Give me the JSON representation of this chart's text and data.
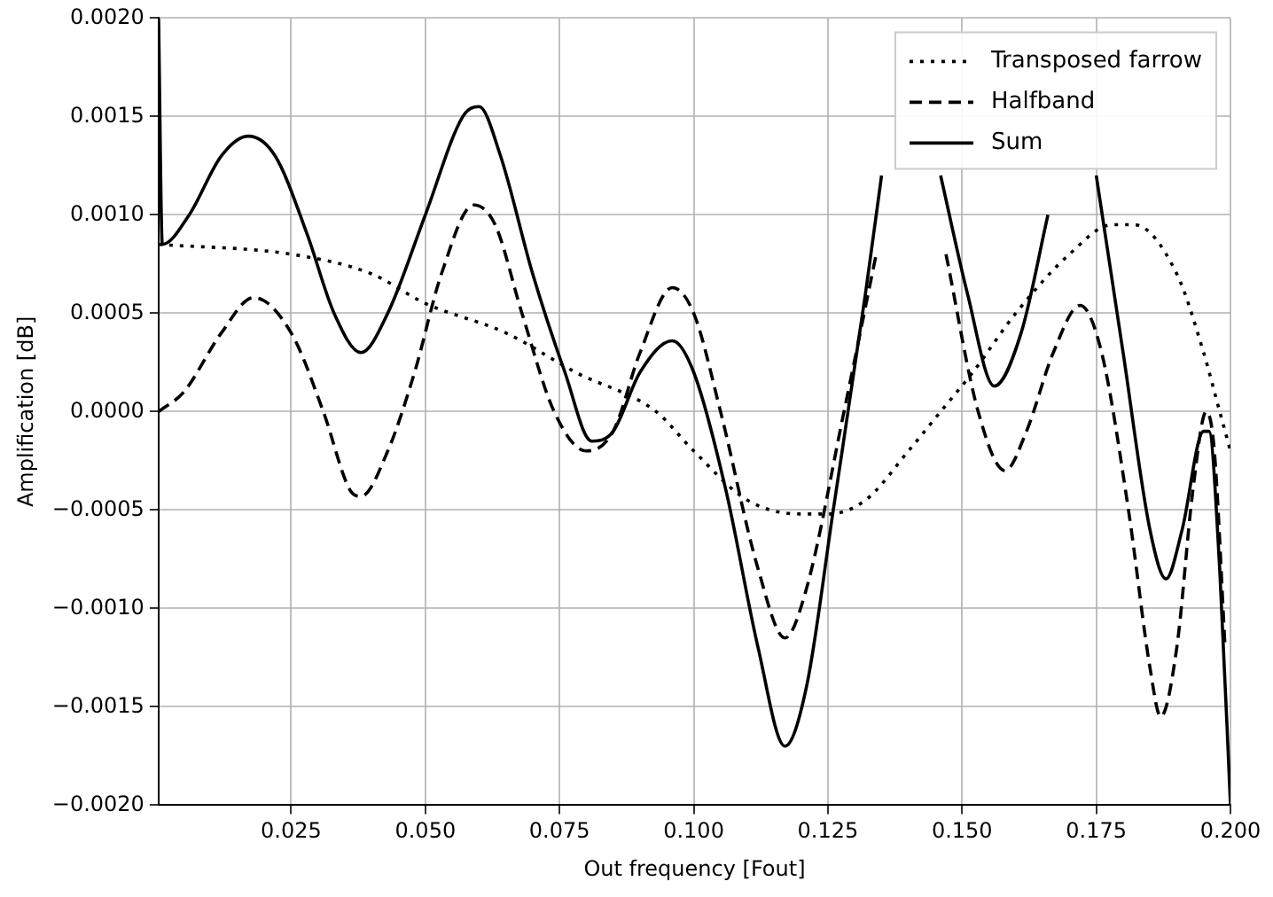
{
  "chart_data": {
    "type": "line",
    "xlabel": "Out frequency [Fout]",
    "ylabel": "Amplification [dB]",
    "xlim": [
      0.0003,
      0.2
    ],
    "ylim": [
      -0.002,
      0.002
    ],
    "xticks": [
      {
        "value": 0.025,
        "label": "0.025"
      },
      {
        "value": 0.05,
        "label": "0.050"
      },
      {
        "value": 0.075,
        "label": "0.075"
      },
      {
        "value": 0.1,
        "label": "0.100"
      },
      {
        "value": 0.125,
        "label": "0.125"
      },
      {
        "value": 0.15,
        "label": "0.150"
      },
      {
        "value": 0.175,
        "label": "0.175"
      },
      {
        "value": 0.2,
        "label": "0.200"
      }
    ],
    "yticks": [
      {
        "value": -0.002,
        "label": "−0.0020"
      },
      {
        "value": -0.0015,
        "label": "−0.0015"
      },
      {
        "value": -0.001,
        "label": "−0.0010"
      },
      {
        "value": -0.0005,
        "label": "−0.0005"
      },
      {
        "value": 0,
        "label": "0.0000"
      },
      {
        "value": 0.0005,
        "label": "0.0005"
      },
      {
        "value": 0.001,
        "label": "0.0010"
      },
      {
        "value": 0.0015,
        "label": "0.0015"
      },
      {
        "value": 0.002,
        "label": "0.0020"
      }
    ],
    "grid": true,
    "legend": "top right",
    "marker": "none",
    "series": [
      {
        "name": "Transposed farrow",
        "color": "#000000",
        "line_style": "dotted",
        "x": [
          0.0003,
          0.025,
          0.04,
          0.05,
          0.065,
          0.078,
          0.093,
          0.1,
          0.11,
          0.12,
          0.125,
          0.132,
          0.14,
          0.146,
          0.152,
          0.16,
          0.17,
          0.178,
          0.182,
          0.19,
          0.195,
          0.198,
          0.2
        ],
        "values": [
          0.00085,
          0.0008,
          0.0007,
          0.00055,
          0.0004,
          0.0002,
          0.0,
          -0.0002,
          -0.00045,
          -0.00052,
          -0.00052,
          -0.00045,
          -0.0002,
          0.0,
          0.0002,
          0.0005,
          0.0008,
          0.00095,
          0.00095,
          0.0007,
          0.0003,
          0.0,
          -0.0002
        ]
      },
      {
        "name": "Halfband",
        "color": "#000000",
        "line_style": "dashed",
        "x": [
          0.0003,
          0.005,
          0.012,
          0.018,
          0.025,
          0.031,
          0.036,
          0.038,
          0.043,
          0.048,
          0.053,
          0.059,
          0.063,
          0.068,
          0.074,
          0.08,
          0.085,
          0.09,
          0.096,
          0.1,
          0.105,
          0.112,
          0.117,
          0.121,
          0.128,
          0.134,
          0.14,
          0.147,
          0.153,
          0.158,
          0.162,
          0.167,
          0.172,
          0.176,
          0.181,
          0.185,
          0.187,
          0.19,
          0.193,
          0.1955,
          0.197,
          0.199
        ],
        "values": [
          0.0,
          0.0001,
          0.0004,
          0.00058,
          0.0004,
          0.0,
          -0.0004,
          -0.00043,
          -0.0002,
          0.0002,
          0.0007,
          0.00105,
          0.00095,
          0.0005,
          0.0,
          -0.0002,
          -0.0001,
          0.0003,
          0.00063,
          0.0005,
          0.0,
          -0.0008,
          -0.00115,
          -0.0009,
          0.0,
          0.0008,
          null,
          0.0008,
          0.0,
          -0.0003,
          -0.0001,
          0.0003,
          0.00054,
          0.0003,
          -0.0005,
          -0.0013,
          -0.00155,
          -0.0012,
          -0.0004,
          0.0,
          -0.0002,
          -0.0012
        ]
      },
      {
        "name": "Sum",
        "color": "#000000",
        "line_style": "solid",
        "x": [
          0.0003,
          0.001,
          0.006,
          0.012,
          0.017,
          0.022,
          0.028,
          0.033,
          0.038,
          0.043,
          0.05,
          0.057,
          0.06,
          0.064,
          0.07,
          0.076,
          0.081,
          0.085,
          0.09,
          0.096,
          0.1,
          0.106,
          0.112,
          0.117,
          0.121,
          0.126,
          0.132,
          0.135,
          0.14,
          0.146,
          0.151,
          0.156,
          0.161,
          0.166,
          0.171,
          0.175,
          0.18,
          0.185,
          0.188,
          0.191,
          0.195,
          0.196,
          0.198,
          0.2
        ],
        "values": [
          0.002,
          0.00085,
          0.001,
          0.0013,
          0.0014,
          0.0013,
          0.0009,
          0.0005,
          0.0003,
          0.0005,
          0.001,
          0.0015,
          0.00155,
          0.0013,
          0.0007,
          0.0002,
          -0.00015,
          -0.0001,
          0.0002,
          0.00036,
          0.0002,
          -0.0004,
          -0.0012,
          -0.0017,
          -0.0014,
          -0.0005,
          0.0006,
          0.0012,
          null,
          0.0012,
          0.0006,
          0.00013,
          0.0004,
          0.001,
          null,
          0.0012,
          0.0003,
          -0.0006,
          -0.00085,
          -0.0006,
          -0.0001,
          -0.0001,
          -0.0008,
          -0.002
        ]
      }
    ]
  }
}
